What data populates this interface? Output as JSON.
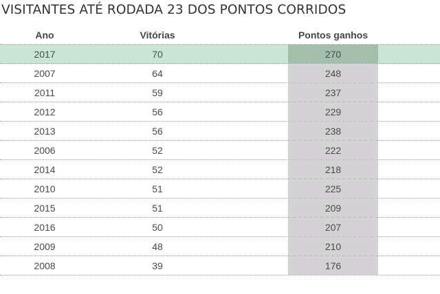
{
  "title": "VISITANTES ATÉ RODADA 23 DOS PONTOS CORRIDOS",
  "chart_data": {
    "type": "table",
    "columns": [
      "Ano",
      "Vitórias",
      "Pontos ganhos"
    ],
    "rows": [
      {
        "ano": "2017",
        "vitorias": "70",
        "pontos": "270",
        "highlight": true
      },
      {
        "ano": "2007",
        "vitorias": "64",
        "pontos": "248",
        "highlight": false
      },
      {
        "ano": "2011",
        "vitorias": "59",
        "pontos": "237",
        "highlight": false
      },
      {
        "ano": "2012",
        "vitorias": "56",
        "pontos": "229",
        "highlight": false
      },
      {
        "ano": "2013",
        "vitorias": "56",
        "pontos": "238",
        "highlight": false
      },
      {
        "ano": "2006",
        "vitorias": "52",
        "pontos": "222",
        "highlight": false
      },
      {
        "ano": "2014",
        "vitorias": "52",
        "pontos": "218",
        "highlight": false
      },
      {
        "ano": "2010",
        "vitorias": "51",
        "pontos": "225",
        "highlight": false
      },
      {
        "ano": "2015",
        "vitorias": "51",
        "pontos": "209",
        "highlight": false
      },
      {
        "ano": "2016",
        "vitorias": "50",
        "pontos": "207",
        "highlight": false
      },
      {
        "ano": "2009",
        "vitorias": "48",
        "pontos": "210",
        "highlight": false
      },
      {
        "ano": "2008",
        "vitorias": "39",
        "pontos": "176",
        "highlight": false
      }
    ]
  },
  "colors": {
    "highlight_row": "#c8e6d3",
    "highlight_column": "#d4d2d4",
    "highlight_cell": "#a3bfab"
  }
}
